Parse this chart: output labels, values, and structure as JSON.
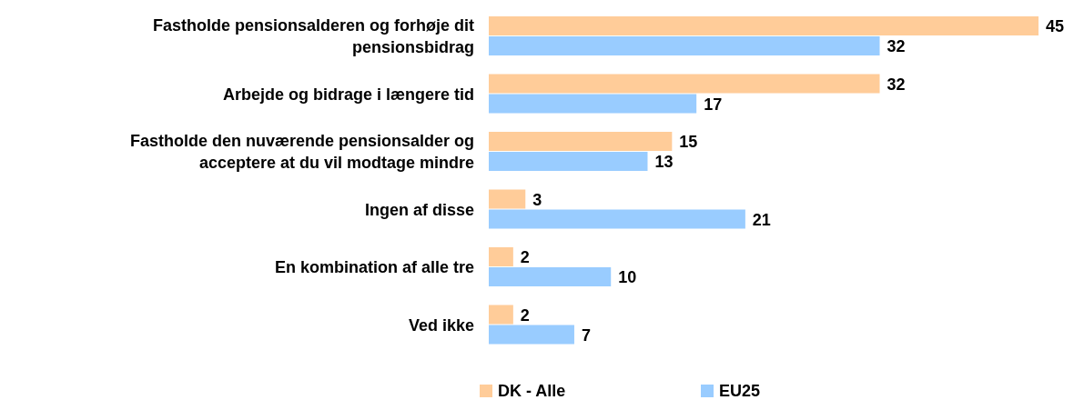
{
  "chart_data": {
    "type": "bar",
    "orientation": "horizontal",
    "categories": [
      "Fastholde pensionsalderen og forhøje dit pensionsbidrag",
      "Arbejde og bidrage i længere tid",
      "Fastholde den nuværende pensionsalder og acceptere at du vil modtage mindre",
      "Ingen af disse",
      "En kombination af alle tre",
      "Ved ikke"
    ],
    "series": [
      {
        "name": "DK - Alle",
        "color": "#ffcc99",
        "values": [
          45,
          32,
          15,
          3,
          2,
          2
        ]
      },
      {
        "name": "EU25",
        "color": "#99ccff",
        "values": [
          32,
          17,
          13,
          21,
          10,
          7
        ]
      }
    ],
    "data_labels": true,
    "legend": "bottom"
  }
}
